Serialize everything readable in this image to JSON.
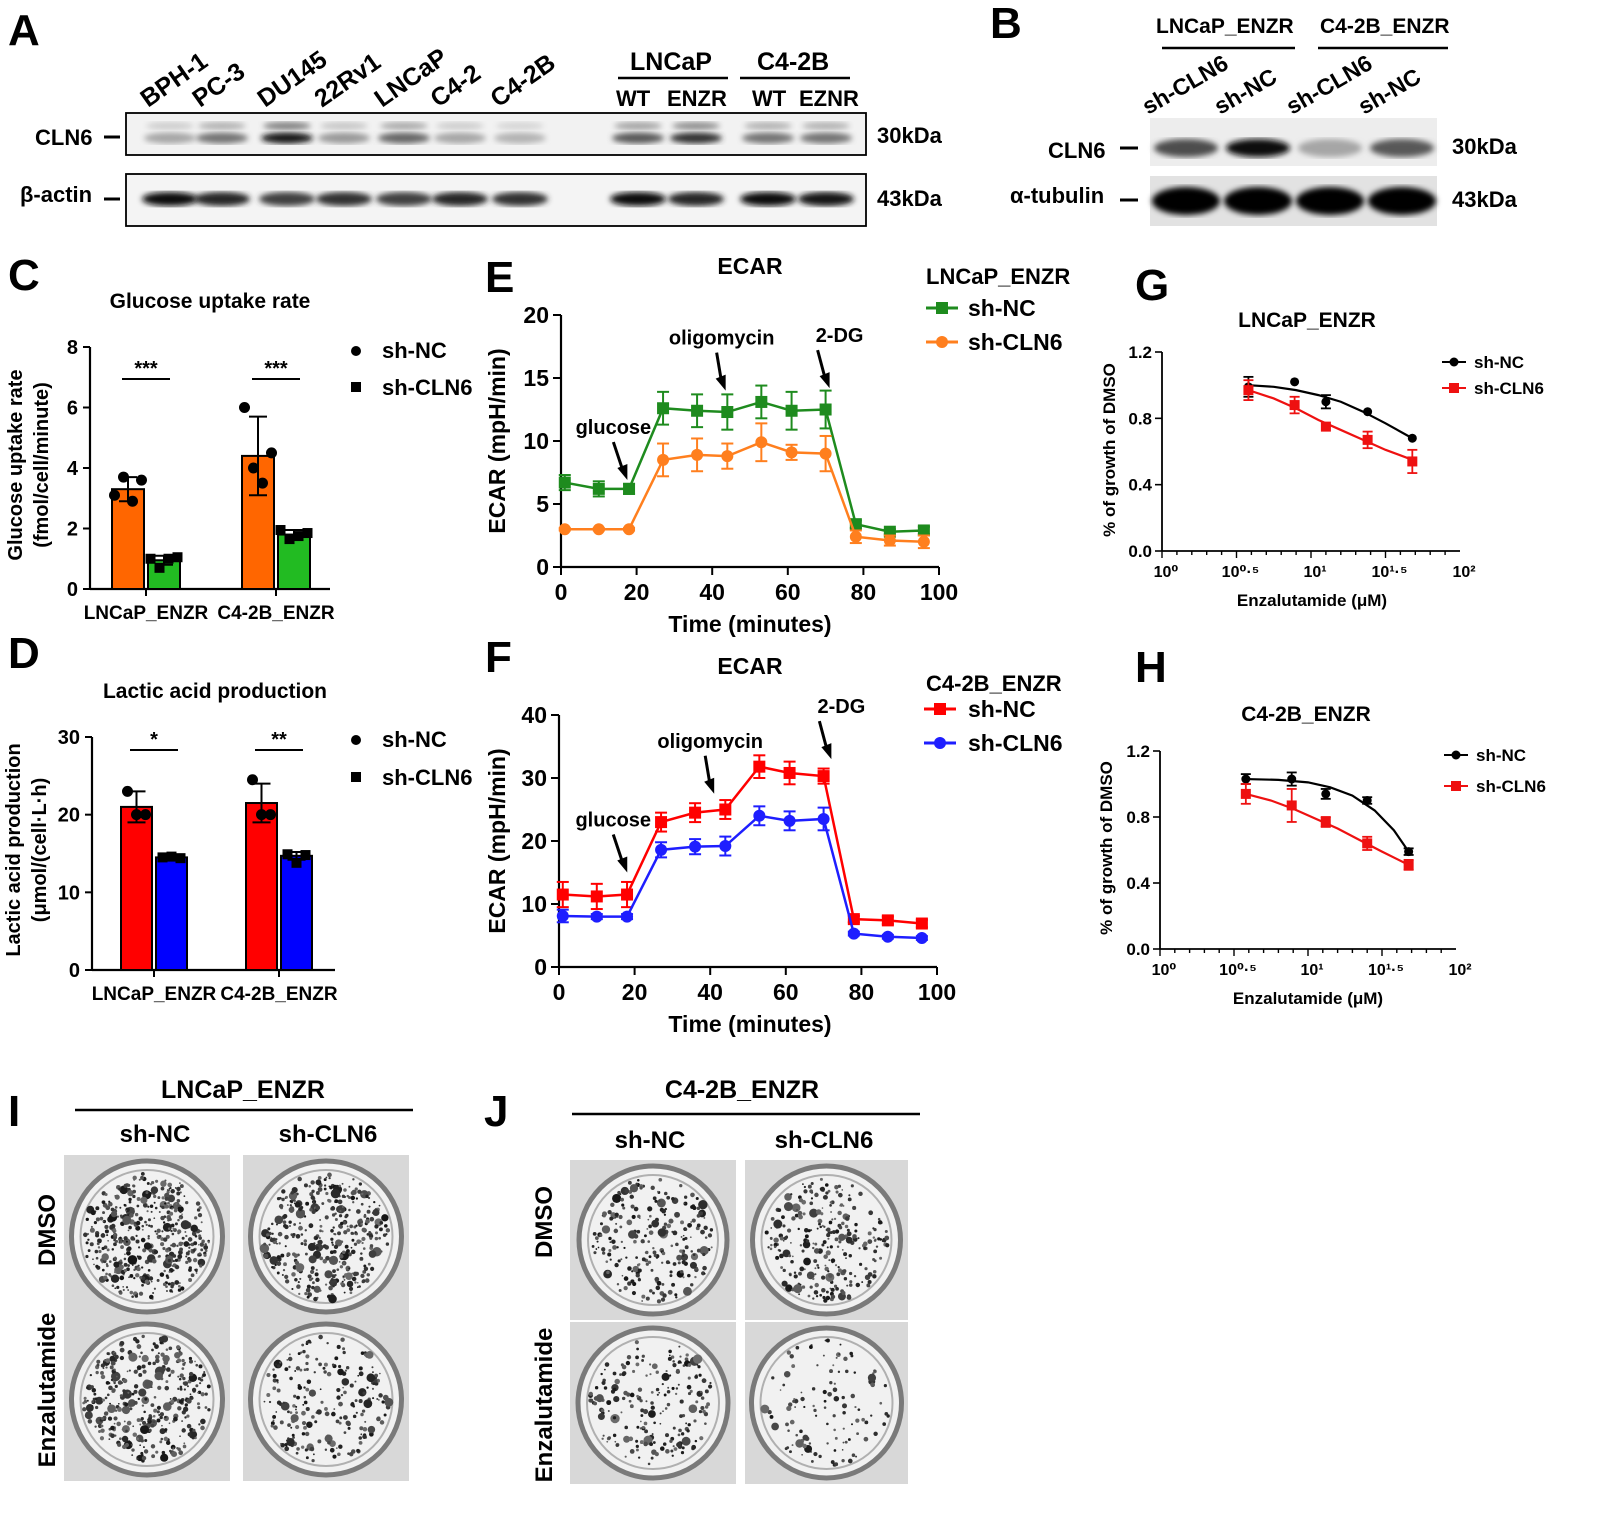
{
  "panels": {
    "A": {
      "letter": "A",
      "lanes": [
        "BPH-1",
        "PC-3",
        "DU145",
        "22Rv1",
        "LNCaP",
        "C4-2",
        "C4-2B"
      ],
      "group1": "LNCaP",
      "group2": "C4-2B",
      "group1_sub": [
        "WT",
        "ENZR"
      ],
      "group2_sub": [
        "WT",
        "EZNR"
      ],
      "row1_label": "CLN6",
      "row2_label": "β-actin",
      "row1_size": "30kDa",
      "row2_size": "43kDa",
      "row1_intensity": [
        0.35,
        0.55,
        0.9,
        0.4,
        0.6,
        0.35,
        0.3,
        0.65,
        0.8,
        0.55,
        0.55
      ],
      "row2_intensity": [
        0.95,
        0.85,
        0.75,
        0.8,
        0.75,
        0.85,
        0.8,
        0.95,
        0.85,
        0.95,
        0.9
      ]
    },
    "B": {
      "letter": "B",
      "group1": "LNCaP_ENZR",
      "group2": "C4-2B_ENZR",
      "lanes": [
        "sh-CLN6",
        "sh-NC",
        "sh-CLN6",
        "sh-NC"
      ],
      "row1_label": "CLN6",
      "row2_label": "α-tubulin",
      "row1_size": "30kDa",
      "row2_size": "43kDa",
      "row1_intensity": [
        0.7,
        0.95,
        0.35,
        0.65
      ],
      "row2_intensity": [
        1,
        1,
        1,
        1
      ]
    },
    "C": {
      "letter": "C",
      "title": "Glucose uptake rate",
      "ylabel1": "Glucose uptake rate",
      "ylabel2": "(fmol/cell/minute)",
      "legend": [
        "sh-NC",
        "sh-CLN6"
      ],
      "colors": [
        "#FF6600",
        "#22BB22"
      ]
    },
    "D": {
      "letter": "D",
      "title": "Lactic acid production",
      "ylabel1": "Lactic acid production",
      "ylabel2": "(μmol/(cell·L·h)",
      "legend": [
        "sh-NC",
        "sh-CLN6"
      ],
      "colors": [
        "#FF0000",
        "#0000FF"
      ]
    },
    "E": {
      "letter": "E",
      "title": "ECAR",
      "legend_title": "LNCaP_ENZR",
      "legend": [
        "sh-NC",
        "sh-CLN6"
      ],
      "colors": [
        "#1E8B1E",
        "#FF7F1E"
      ],
      "annotations": [
        "glucose",
        "oligomycin",
        "2-DG"
      ],
      "xlabel": "Time (minutes)",
      "ylabel": "ECAR (mpH/min)"
    },
    "F": {
      "letter": "F",
      "title": "ECAR",
      "legend_title": "C4-2B_ENZR",
      "legend": [
        "sh-NC",
        "sh-CLN6"
      ],
      "colors": [
        "#FF0000",
        "#1E1EFF"
      ],
      "annotations": [
        "glucose",
        "oligomycin",
        "2-DG"
      ],
      "xlabel": "Time (minutes)",
      "ylabel": "ECAR (mpH/min)"
    },
    "G": {
      "letter": "G",
      "title": "LNCaP_ENZR",
      "legend": [
        "sh-NC",
        "sh-CLN6"
      ],
      "colors": [
        "#000000",
        "#EE1111"
      ],
      "xlabel": "Enzalutamide (μM)",
      "ylabel": "% of growth of DMSO"
    },
    "H": {
      "letter": "H",
      "title": "C4-2B_ENZR",
      "legend": [
        "sh-NC",
        "sh-CLN6"
      ],
      "colors": [
        "#000000",
        "#EE1111"
      ],
      "xlabel": "Enzalutamide (μM)",
      "ylabel": "% of growth of DMSO"
    },
    "I": {
      "letter": "I",
      "group": "LNCaP_ENZR",
      "cols": [
        "sh-NC",
        "sh-CLN6"
      ],
      "rows": [
        "DMSO",
        "Enzalutamide"
      ],
      "density": [
        [
          1.0,
          0.85
        ],
        [
          0.8,
          0.45
        ]
      ]
    },
    "J": {
      "letter": "J",
      "group": "C4-2B_ENZR",
      "cols": [
        "sh-NC",
        "sh-CLN6"
      ],
      "rows": [
        "DMSO",
        "Enzalutamide"
      ],
      "density": [
        [
          0.5,
          0.55
        ],
        [
          0.4,
          0.18
        ]
      ]
    }
  },
  "chart_data": [
    {
      "id": "C",
      "type": "bar",
      "title": "Glucose uptake rate",
      "ylabel": "Glucose uptake rate (fmol/cell/minute)",
      "categories": [
        "LNCaP_ENZR",
        "C4-2B_ENZR"
      ],
      "series": [
        {
          "name": "sh-NC",
          "values": [
            3.3,
            4.4
          ],
          "error": [
            0.4,
            1.3
          ],
          "points": [
            [
              3.1,
              3.7,
              2.9,
              3.6
            ],
            [
              6.0,
              4.0,
              3.5,
              4.5
            ]
          ]
        },
        {
          "name": "sh-CLN6",
          "values": [
            0.95,
            1.8
          ],
          "error": [
            0.15,
            0.15
          ],
          "points": [
            [
              1.0,
              0.7,
              1.0,
              1.05
            ],
            [
              1.95,
              1.65,
              1.75,
              1.85
            ]
          ]
        }
      ],
      "significance": [
        "***",
        "***"
      ],
      "ylim": [
        0,
        8
      ],
      "yticks": [
        0,
        2,
        4,
        6,
        8
      ]
    },
    {
      "id": "D",
      "type": "bar",
      "title": "Lactic acid production",
      "ylabel": "Lactic acid production (μmol/(cell·L·h)",
      "categories": [
        "LNCaP_ENZR",
        "C4-2B_ENZR"
      ],
      "series": [
        {
          "name": "sh-NC",
          "values": [
            21,
            21.5
          ],
          "error": [
            2.0,
            2.5
          ],
          "points": [
            [
              23.0,
              20.0,
              20.0
            ],
            [
              24.5,
              20.0,
              20.0
            ]
          ]
        },
        {
          "name": "sh-CLN6",
          "values": [
            14.5,
            14.7
          ],
          "error": [
            0.2,
            0.5
          ],
          "points": [
            [
              14.5,
              14.6,
              14.4
            ],
            [
              14.9,
              13.8,
              14.8
            ]
          ]
        }
      ],
      "significance": [
        "*",
        "**"
      ],
      "ylim": [
        0,
        30
      ],
      "yticks": [
        0,
        10,
        20,
        30
      ]
    },
    {
      "id": "E",
      "type": "line",
      "title": "ECAR",
      "xlabel": "Time (minutes)",
      "ylabel": "ECAR (mpH/min)",
      "x": [
        1,
        10,
        18,
        27,
        36,
        44,
        53,
        61,
        70,
        78,
        87,
        96
      ],
      "series": [
        {
          "name": "sh-NC",
          "values": [
            6.7,
            6.2,
            6.2,
            12.6,
            12.4,
            12.3,
            13.1,
            12.4,
            12.5,
            3.4,
            2.8,
            2.9
          ],
          "error": [
            0.6,
            0.6,
            0.4,
            1.3,
            1.3,
            1.4,
            1.3,
            1.5,
            1.5,
            0.3,
            0.2,
            0.3
          ]
        },
        {
          "name": "sh-CLN6",
          "values": [
            3.0,
            3.0,
            3.0,
            8.5,
            8.9,
            8.8,
            9.9,
            9.1,
            9.0,
            2.4,
            2.1,
            2.0
          ],
          "error": [
            0.1,
            0.1,
            0.1,
            1.3,
            1.3,
            1.0,
            1.5,
            0.6,
            1.4,
            0.5,
            0.4,
            0.5
          ]
        }
      ],
      "xlim": [
        0,
        100
      ],
      "ylim": [
        0,
        20
      ],
      "xticks": [
        0,
        20,
        40,
        60,
        80,
        100
      ],
      "yticks": [
        0,
        5,
        10,
        15,
        20
      ],
      "arrows": [
        {
          "label": "glucose",
          "x": 16.5,
          "y": 6.9
        },
        {
          "label": "oligomycin",
          "x": 42.5,
          "y": 14.0
        },
        {
          "label": "2-DG",
          "x": 70,
          "y": 14.2
        }
      ]
    },
    {
      "id": "F",
      "type": "line",
      "title": "ECAR",
      "xlabel": "Time (minutes)",
      "ylabel": "ECAR (mpH/min)",
      "x": [
        1,
        10,
        18,
        27,
        36,
        44,
        53,
        61,
        70,
        78,
        87,
        96
      ],
      "series": [
        {
          "name": "sh-NC",
          "values": [
            11.5,
            11.2,
            11.5,
            23.0,
            24.5,
            25.0,
            31.8,
            30.8,
            30.3,
            7.6,
            7.4,
            6.9
          ],
          "error": [
            2.0,
            2.0,
            2.0,
            1.5,
            1.5,
            1.5,
            1.8,
            1.8,
            1.2,
            0.5,
            0.6,
            0.6
          ]
        },
        {
          "name": "sh-CLN6",
          "values": [
            8.1,
            8.0,
            8.0,
            18.6,
            19.1,
            19.2,
            24.0,
            23.2,
            23.5,
            5.3,
            4.8,
            4.6
          ],
          "error": [
            1.0,
            0.4,
            0.4,
            1.2,
            1.2,
            1.5,
            1.5,
            1.5,
            1.8,
            0.3,
            0.3,
            0.3
          ]
        }
      ],
      "xlim": [
        0,
        100
      ],
      "ylim": [
        0,
        40
      ],
      "xticks": [
        0,
        20,
        40,
        60,
        80,
        100
      ],
      "yticks": [
        0,
        10,
        20,
        30,
        40
      ],
      "arrows": [
        {
          "label": "glucose",
          "x": 17,
          "y": 15.0
        },
        {
          "label": "oligomycin",
          "x": 40,
          "y": 27.5
        },
        {
          "label": "2-DG",
          "x": 71,
          "y": 33.0
        }
      ]
    },
    {
      "id": "G",
      "type": "scatter",
      "title": "LNCaP_ENZR",
      "xlabel": "Enzalutamide (μM)",
      "ylabel": "% of growth of DMSO",
      "xscale": "log",
      "x_log10": [
        0.58,
        0.89,
        1.1,
        1.38,
        1.68
      ],
      "series": [
        {
          "name": "sh-NC",
          "values": [
            0.99,
            1.02,
            0.9,
            0.84,
            0.68
          ],
          "error": [
            0.06,
            0.0,
            0.04,
            0.0,
            0.0
          ],
          "fit": [
            [
              0.58,
              1.0
            ],
            [
              0.75,
              0.99
            ],
            [
              0.9,
              0.97
            ],
            [
              1.05,
              0.94
            ],
            [
              1.2,
              0.9
            ],
            [
              1.35,
              0.84
            ],
            [
              1.5,
              0.77
            ],
            [
              1.68,
              0.68
            ]
          ]
        },
        {
          "name": "sh-CLN6",
          "values": [
            0.97,
            0.88,
            0.75,
            0.67,
            0.54
          ],
          "error": [
            0.06,
            0.05,
            0.0,
            0.05,
            0.07
          ],
          "fit": [
            [
              0.58,
              0.97
            ],
            [
              0.75,
              0.92
            ],
            [
              0.9,
              0.86
            ],
            [
              1.05,
              0.79
            ],
            [
              1.2,
              0.73
            ],
            [
              1.35,
              0.67
            ],
            [
              1.5,
              0.61
            ],
            [
              1.68,
              0.55
            ]
          ]
        }
      ],
      "xlim_log10": [
        0,
        2
      ],
      "ylim": [
        0,
        1.2
      ],
      "yticks": [
        0.0,
        0.4,
        0.8,
        1.2
      ],
      "xtick_labels": [
        "10⁰",
        "10⁰·⁵",
        "10¹",
        "10¹·⁵",
        "10²"
      ]
    },
    {
      "id": "H",
      "type": "scatter",
      "title": "C4-2B_ENZR",
      "xlabel": "Enzalutamide (μM)",
      "ylabel": "% of growth of DMSO",
      "xscale": "log",
      "x_log10": [
        0.58,
        0.89,
        1.12,
        1.4,
        1.68
      ],
      "series": [
        {
          "name": "sh-NC",
          "values": [
            1.03,
            1.03,
            0.94,
            0.9,
            0.59
          ],
          "error": [
            0.03,
            0.04,
            0.03,
            0.02,
            0.02
          ],
          "fit": [
            [
              0.58,
              1.03
            ],
            [
              0.8,
              1.025
            ],
            [
              1.0,
              1.01
            ],
            [
              1.15,
              0.98
            ],
            [
              1.3,
              0.93
            ],
            [
              1.45,
              0.84
            ],
            [
              1.58,
              0.72
            ],
            [
              1.68,
              0.59
            ]
          ]
        },
        {
          "name": "sh-CLN6",
          "values": [
            0.94,
            0.87,
            0.77,
            0.64,
            0.51
          ],
          "error": [
            0.06,
            0.1,
            0.03,
            0.04,
            0.03
          ],
          "fit": [
            [
              0.58,
              0.94
            ],
            [
              0.75,
              0.9
            ],
            [
              0.9,
              0.85
            ],
            [
              1.05,
              0.79
            ],
            [
              1.2,
              0.73
            ],
            [
              1.35,
              0.66
            ],
            [
              1.5,
              0.59
            ],
            [
              1.68,
              0.51
            ]
          ]
        }
      ],
      "xlim_log10": [
        0,
        2
      ],
      "ylim": [
        0,
        1.2
      ],
      "yticks": [
        0.0,
        0.4,
        0.8,
        1.2
      ],
      "xtick_labels": [
        "10⁰",
        "10⁰·⁵",
        "10¹",
        "10¹·⁵",
        "10²"
      ]
    }
  ]
}
